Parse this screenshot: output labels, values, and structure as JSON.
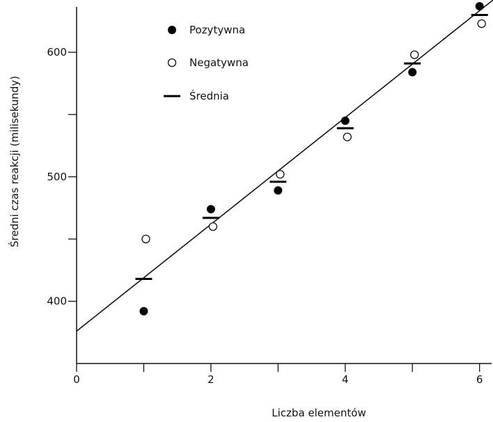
{
  "chart_data": {
    "type": "scatter",
    "title": "",
    "xlabel": "Liczba elementów",
    "ylabel": "Średni czas reakcji (milisekundy)",
    "xlim": [
      0,
      6.2
    ],
    "ylim": [
      350,
      642
    ],
    "x_ticks": [
      0,
      2,
      4,
      6
    ],
    "x_minor_ticks": [
      1,
      3,
      5
    ],
    "y_ticks": [
      400,
      500,
      600
    ],
    "y_minor_ticks": [
      450,
      550
    ],
    "grid": false,
    "legend_position": "top-left",
    "series": [
      {
        "name": "Pozytywna",
        "marker": "filled-circle",
        "x": [
          1,
          2,
          3,
          4,
          5,
          6
        ],
        "y": [
          392,
          474,
          489,
          545,
          584,
          637
        ]
      },
      {
        "name": "Negatywna",
        "marker": "open-circle",
        "x": [
          1,
          2,
          3,
          4,
          5,
          6
        ],
        "y": [
          450,
          460,
          502,
          532,
          598,
          623
        ]
      },
      {
        "name": "Średnia",
        "marker": "dash",
        "x": [
          1,
          2,
          3,
          4,
          5,
          6
        ],
        "y": [
          418,
          467,
          496,
          539,
          591,
          630
        ]
      }
    ],
    "fit_line": {
      "x": [
        0,
        6.2
      ],
      "y": [
        376,
        642
      ]
    }
  }
}
